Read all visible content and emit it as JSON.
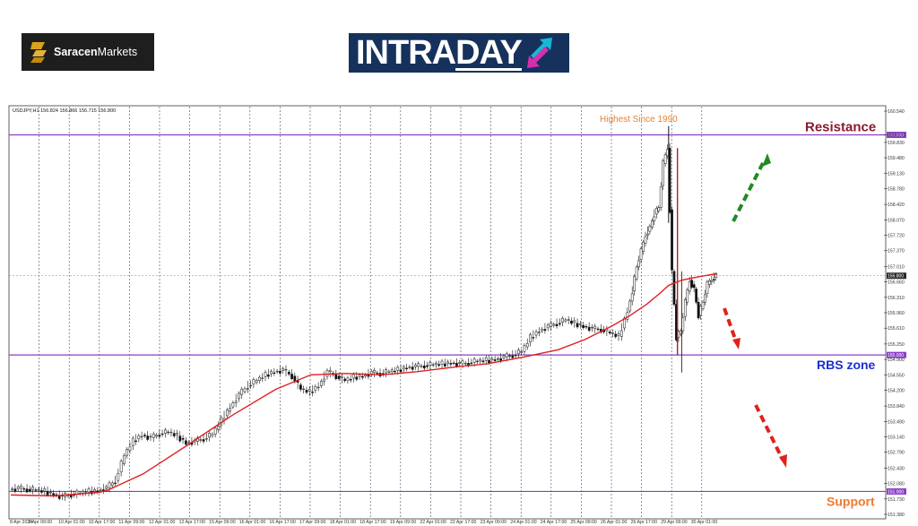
{
  "brand": {
    "saracen_bold": "Saracen",
    "saracen_light": "Markets",
    "intraday_main": "INTRA",
    "intraday_day": "DAY",
    "colors": {
      "saracen_bg": "#1e1e1e",
      "saracen_gold": "#d9a21b",
      "intraday_bg": "#16325c",
      "intraday_cyan": "#18b7d6",
      "intraday_magenta": "#d62fae"
    }
  },
  "chart_data": {
    "type": "candlestick",
    "symbol_header": "USDJPY,H1  156.824 156.866 156.715 156.800",
    "x_ticks": [
      "8 Apr 2024",
      "9 Apr 09:00",
      "10 Apr 01:00",
      "10 Apr 17:00",
      "11 Apr 09:00",
      "12 Apr 01:00",
      "12 Apr 17:00",
      "15 Apr 09:00",
      "16 Apr 01:00",
      "16 Apr 17:00",
      "17 Apr 09:00",
      "18 Apr 01:00",
      "18 Apr 17:00",
      "19 Apr 09:00",
      "22 Apr 01:00",
      "22 Apr 17:00",
      "23 Apr 09:00",
      "24 Apr 01:00",
      "24 Apr 17:00",
      "25 Apr 09:00",
      "26 Apr 01:00",
      "26 Apr 17:00",
      "29 Apr 09:00",
      "30 Apr 01:00"
    ],
    "y_ticks": [
      "160.540",
      "160.000",
      "159.830",
      "159.480",
      "159.130",
      "158.780",
      "158.420",
      "158.070",
      "157.720",
      "157.370",
      "157.010",
      "156.660",
      "156.310",
      "155.960",
      "155.610",
      "155.250",
      "154.900",
      "154.550",
      "154.200",
      "153.840",
      "153.490",
      "153.140",
      "152.790",
      "152.430",
      "152.080",
      "151.730",
      "151.380"
    ],
    "ylim": [
      151.38,
      160.54
    ],
    "levels": [
      {
        "name": "Resistance",
        "price": 160.0,
        "price_label": "160.000",
        "color": "#8a1a2b"
      },
      {
        "name": "RBS zone",
        "price": 155.0,
        "price_label": "155.000",
        "color": "#1c2fd0"
      },
      {
        "name": "Support",
        "price": 151.9,
        "price_label": "151.900",
        "color": "#f07a2c"
      }
    ],
    "current_price_label": "156.800",
    "current_price": 156.8,
    "annotation": "Highest Since 1990",
    "series": [
      {
        "name": "Price (close, approx.)",
        "x": [
          0,
          10,
          20,
          30,
          40,
          50,
          60,
          70,
          80,
          90,
          100,
          110,
          120,
          130,
          140,
          150,
          160,
          170,
          180,
          190,
          200,
          210,
          220,
          230,
          240,
          250,
          260,
          270,
          280,
          290,
          300,
          310,
          320,
          330,
          340,
          350,
          360,
          370,
          380,
          390,
          400,
          410,
          420,
          430,
          440,
          450,
          460,
          470,
          480,
          490,
          500,
          510,
          520,
          530,
          540,
          550,
          560,
          570,
          580,
          590,
          600,
          610,
          620,
          630,
          640,
          650,
          660,
          670,
          680,
          690,
          700,
          705,
          710,
          715,
          720,
          725,
          730,
          735,
          740,
          745,
          750,
          755,
          760,
          765,
          770,
          775,
          780,
          785,
          790,
          795,
          800
        ],
        "values": [
          151.95,
          151.97,
          151.95,
          151.93,
          151.9,
          151.83,
          151.78,
          151.83,
          151.86,
          151.9,
          151.92,
          151.98,
          152.15,
          152.72,
          153.05,
          153.18,
          153.12,
          153.21,
          153.25,
          153.16,
          153.0,
          153.04,
          153.1,
          153.2,
          153.52,
          153.82,
          154.1,
          154.3,
          154.42,
          154.55,
          154.62,
          154.66,
          154.52,
          154.22,
          154.16,
          154.3,
          154.62,
          154.52,
          154.42,
          154.5,
          154.52,
          154.6,
          154.58,
          154.62,
          154.66,
          154.72,
          154.74,
          154.76,
          154.78,
          154.8,
          154.82,
          154.8,
          154.82,
          154.86,
          154.88,
          154.9,
          154.95,
          155.0,
          155.08,
          155.4,
          155.55,
          155.65,
          155.72,
          155.8,
          155.72,
          155.65,
          155.6,
          155.58,
          155.5,
          155.42,
          156.0,
          156.45,
          157.0,
          157.35,
          157.72,
          157.9,
          158.2,
          158.35,
          159.35,
          159.7,
          156.9,
          155.4,
          155.55,
          156.2,
          156.7,
          156.5,
          155.9,
          156.2,
          156.6,
          156.72,
          156.8
        ]
      },
      {
        "name": "Moving average",
        "x": [
          0,
          50,
          100,
          110,
          150,
          200,
          250,
          300,
          340,
          380,
          420,
          460,
          500,
          540,
          580,
          620,
          650,
          680,
          700,
          720,
          735,
          745,
          760,
          780,
          800
        ],
        "values": [
          151.82,
          151.8,
          151.88,
          151.93,
          152.3,
          152.95,
          153.62,
          154.22,
          154.55,
          154.58,
          154.55,
          154.62,
          154.72,
          154.8,
          154.95,
          155.12,
          155.35,
          155.65,
          155.88,
          156.15,
          156.4,
          156.58,
          156.7,
          156.78,
          156.85
        ]
      }
    ]
  }
}
